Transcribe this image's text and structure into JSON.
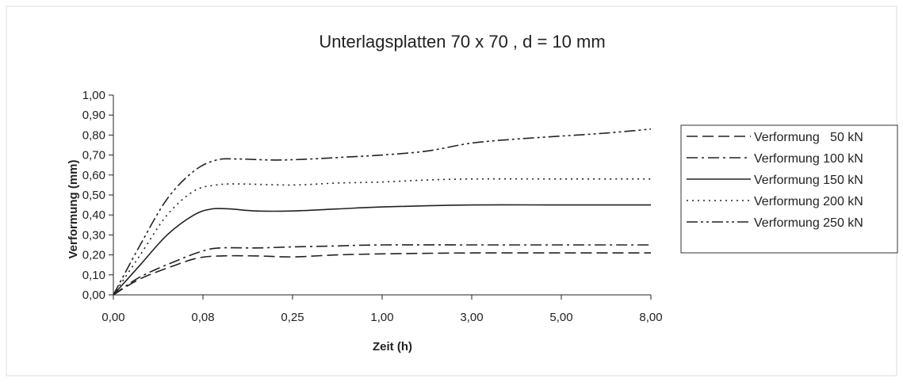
{
  "chart_data": {
    "type": "line",
    "title": "Unterlagsplatten 70 x 70 , d = 10 mm",
    "xlabel": "Zeit (h)",
    "ylabel": "Verformung (mm)",
    "categories": [
      "0,00",
      "0,08",
      "0,25",
      "1,00",
      "3,00",
      "5,00",
      "8,00"
    ],
    "y_tick_labels": [
      "0,00",
      "0,10",
      "0,20",
      "0,30",
      "0,40",
      "0,50",
      "0,60",
      "0,70",
      "0,80",
      "0,90",
      "1,00"
    ],
    "ylim": [
      0,
      1.0
    ],
    "grid": false,
    "legend_position": "right",
    "x_scale": "categorical (evenly spaced ticks)",
    "series": [
      {
        "name": "Verformung   50 kN",
        "dash": "dashed",
        "color": "#222222",
        "points": [
          [
            0.0,
            0.0
          ],
          [
            0.3,
            0.08
          ],
          [
            0.7,
            0.15
          ],
          [
            0.95,
            0.185
          ],
          [
            1.2,
            0.195
          ],
          [
            1.6,
            0.195
          ],
          [
            2.0,
            0.19
          ],
          [
            2.5,
            0.2
          ],
          [
            3.0,
            0.205
          ],
          [
            4.0,
            0.21
          ],
          [
            5.0,
            0.21
          ],
          [
            6.0,
            0.21
          ]
        ]
      },
      {
        "name": "Verformung 100 kN",
        "dash": "dash-dot",
        "color": "#222222",
        "points": [
          [
            0.0,
            0.0
          ],
          [
            0.3,
            0.09
          ],
          [
            0.7,
            0.17
          ],
          [
            1.0,
            0.22
          ],
          [
            1.2,
            0.235
          ],
          [
            1.6,
            0.235
          ],
          [
            2.0,
            0.24
          ],
          [
            2.5,
            0.245
          ],
          [
            3.0,
            0.25
          ],
          [
            4.0,
            0.25
          ],
          [
            5.0,
            0.25
          ],
          [
            6.0,
            0.25
          ]
        ]
      },
      {
        "name": "Verformung 150 kN",
        "dash": "solid",
        "color": "#222222",
        "points": [
          [
            0.0,
            0.0
          ],
          [
            0.3,
            0.15
          ],
          [
            0.6,
            0.3
          ],
          [
            0.9,
            0.4
          ],
          [
            1.1,
            0.43
          ],
          [
            1.3,
            0.43
          ],
          [
            1.6,
            0.42
          ],
          [
            2.0,
            0.42
          ],
          [
            2.5,
            0.43
          ],
          [
            3.0,
            0.44
          ],
          [
            4.0,
            0.45
          ],
          [
            5.0,
            0.45
          ],
          [
            6.0,
            0.45
          ]
        ]
      },
      {
        "name": "Verformung 200 kN",
        "dash": "dotted",
        "color": "#222222",
        "points": [
          [
            0.0,
            0.0
          ],
          [
            0.3,
            0.2
          ],
          [
            0.6,
            0.4
          ],
          [
            0.9,
            0.52
          ],
          [
            1.15,
            0.55
          ],
          [
            1.4,
            0.555
          ],
          [
            2.0,
            0.55
          ],
          [
            2.5,
            0.56
          ],
          [
            3.0,
            0.565
          ],
          [
            3.5,
            0.575
          ],
          [
            4.0,
            0.58
          ],
          [
            5.0,
            0.58
          ],
          [
            6.0,
            0.58
          ]
        ]
      },
      {
        "name": "Verformung 250 kN",
        "dash": "dash-dot-dot",
        "color": "#222222",
        "points": [
          [
            0.0,
            0.0
          ],
          [
            0.3,
            0.25
          ],
          [
            0.6,
            0.48
          ],
          [
            0.9,
            0.62
          ],
          [
            1.15,
            0.675
          ],
          [
            1.4,
            0.68
          ],
          [
            1.8,
            0.675
          ],
          [
            2.2,
            0.68
          ],
          [
            2.6,
            0.69
          ],
          [
            3.0,
            0.7
          ],
          [
            3.5,
            0.72
          ],
          [
            4.0,
            0.76
          ],
          [
            4.5,
            0.78
          ],
          [
            5.0,
            0.795
          ],
          [
            5.5,
            0.81
          ],
          [
            6.0,
            0.83
          ]
        ]
      }
    ]
  }
}
